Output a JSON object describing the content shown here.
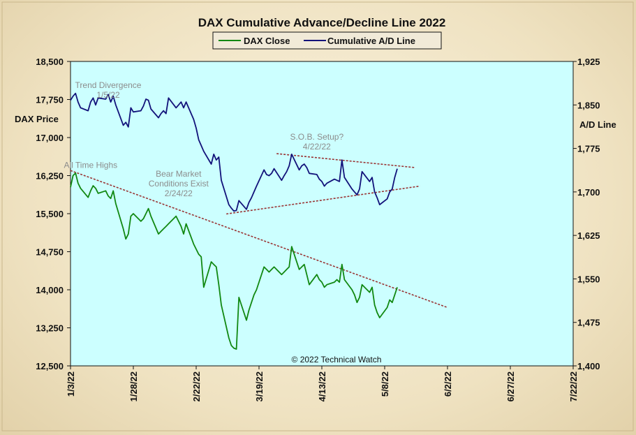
{
  "chart_data": {
    "type": "line",
    "title": "DAX Cumulative Advance/Decline Line 2022",
    "credit": "© 2022 Technical Watch",
    "legend": {
      "placement": "top-center",
      "entries": [
        {
          "name": "DAX Close",
          "color": "#118811"
        },
        {
          "name": "Cumulative A/D Line",
          "color": "#12127a"
        }
      ]
    },
    "left_axis": {
      "label": "DAX Price",
      "range": [
        12500,
        18500
      ],
      "ticks": [
        "12,500",
        "13,250",
        "14,000",
        "14,750",
        "15,500",
        "16,250",
        "17,000",
        "17,750",
        "18,500"
      ]
    },
    "right_axis": {
      "label": "A/D Line",
      "range": [
        1400,
        1925
      ],
      "ticks": [
        "1,400",
        "1,475",
        "1,550",
        "1,625",
        "1,700",
        "1,775",
        "1,850",
        "1,925"
      ]
    },
    "x_axis": {
      "ticks": [
        "1/3/22",
        "1/28/22",
        "2/22/22",
        "3/19/22",
        "4/13/22",
        "5/8/22",
        "6/2/22",
        "6/27/22",
        "7/22/22"
      ],
      "tick_days": [
        0,
        25,
        50,
        75,
        100,
        125,
        150,
        175,
        200
      ]
    },
    "grid": false,
    "plot_background": "#ccffff",
    "series": [
      {
        "name": "DAX Close",
        "axis": "left",
        "color": "#118811",
        "x": [
          0,
          1,
          2,
          3,
          4,
          7,
          8,
          9,
          10,
          11,
          14,
          15,
          16,
          17,
          18,
          21,
          22,
          23,
          24,
          25,
          28,
          29,
          30,
          31,
          32,
          35,
          36,
          37,
          38,
          39,
          42,
          43,
          44,
          45,
          46,
          49,
          50,
          51,
          52,
          53,
          56,
          57,
          58,
          59,
          60,
          63,
          64,
          65,
          66,
          67,
          70,
          71,
          72,
          73,
          74,
          77,
          78,
          79,
          80,
          81,
          84,
          85,
          86,
          87,
          88,
          91,
          92,
          93,
          94,
          95,
          98,
          99,
          100,
          101,
          102,
          105,
          106,
          107,
          108,
          109,
          112,
          113,
          114,
          115,
          116,
          119,
          120,
          121,
          122,
          123,
          126,
          127,
          128,
          129,
          130
        ],
        "y": [
          16020,
          16250,
          16300,
          16100,
          16000,
          15820,
          15950,
          16050,
          16000,
          15900,
          15950,
          15850,
          15800,
          15950,
          15700,
          15200,
          15000,
          15100,
          15450,
          15500,
          15350,
          15400,
          15500,
          15600,
          15450,
          15100,
          15150,
          15200,
          15250,
          15300,
          15450,
          15350,
          15250,
          15100,
          15300,
          14900,
          14800,
          14700,
          14650,
          14050,
          14550,
          14500,
          14450,
          14100,
          13700,
          13050,
          12900,
          12850,
          12830,
          13850,
          13400,
          13600,
          13750,
          13900,
          14000,
          14450,
          14400,
          14350,
          14400,
          14450,
          14300,
          14350,
          14400,
          14450,
          14850,
          14400,
          14450,
          14500,
          14300,
          14100,
          14300,
          14200,
          14150,
          14050,
          14100,
          14150,
          14200,
          14150,
          14500,
          14200,
          14000,
          13900,
          13750,
          13850,
          14100,
          13950,
          14050,
          13700,
          13550,
          13450,
          13650,
          13800,
          13750,
          13900,
          14050
        ]
      },
      {
        "name": "Cumulative A/D Line",
        "axis": "right",
        "color": "#12127a",
        "x": [
          0,
          1,
          2,
          3,
          4,
          7,
          8,
          9,
          10,
          11,
          14,
          15,
          16,
          17,
          18,
          21,
          22,
          23,
          24,
          25,
          28,
          29,
          30,
          31,
          32,
          35,
          36,
          37,
          38,
          39,
          42,
          43,
          44,
          45,
          46,
          49,
          50,
          51,
          52,
          53,
          56,
          57,
          58,
          59,
          60,
          63,
          64,
          65,
          66,
          67,
          70,
          71,
          72,
          73,
          74,
          77,
          78,
          79,
          80,
          81,
          84,
          85,
          86,
          87,
          88,
          91,
          92,
          93,
          94,
          95,
          98,
          99,
          100,
          101,
          102,
          105,
          106,
          107,
          108,
          109,
          112,
          113,
          114,
          115,
          116,
          119,
          120,
          121,
          122,
          123,
          126,
          127,
          128,
          129,
          130
        ],
        "y": [
          1858,
          1865,
          1870,
          1855,
          1845,
          1840,
          1855,
          1862,
          1850,
          1862,
          1860,
          1868,
          1855,
          1865,
          1850,
          1815,
          1820,
          1812,
          1845,
          1838,
          1840,
          1848,
          1860,
          1858,
          1843,
          1828,
          1835,
          1840,
          1835,
          1862,
          1845,
          1850,
          1855,
          1845,
          1855,
          1825,
          1810,
          1790,
          1780,
          1770,
          1748,
          1765,
          1755,
          1760,
          1720,
          1678,
          1672,
          1667,
          1668,
          1685,
          1670,
          1682,
          1690,
          1700,
          1710,
          1738,
          1730,
          1728,
          1732,
          1740,
          1720,
          1728,
          1735,
          1745,
          1765,
          1738,
          1745,
          1748,
          1742,
          1732,
          1730,
          1722,
          1718,
          1710,
          1715,
          1722,
          1720,
          1718,
          1755,
          1725,
          1705,
          1700,
          1695,
          1705,
          1735,
          1718,
          1725,
          1700,
          1690,
          1678,
          1688,
          1700,
          1705,
          1725,
          1740
        ]
      }
    ],
    "trendlines": [
      {
        "axis": "left",
        "from": [
          0,
          16350
        ],
        "to": [
          150,
          13650
        ],
        "color": "#993333",
        "style": "dashed"
      },
      {
        "axis": "right",
        "from": [
          62,
          1662
        ],
        "to": [
          139,
          1710
        ],
        "color": "#993333",
        "style": "dashed"
      },
      {
        "axis": "right",
        "from": [
          82,
          1766
        ],
        "to": [
          137,
          1742
        ],
        "color": "#993333",
        "style": "dashed"
      }
    ],
    "annotations": [
      {
        "lines": [
          "Trend  Divergence",
          "1/5/22"
        ],
        "axis": "left",
        "x": 15,
        "y": 17980
      },
      {
        "lines": [
          "All Time Highs"
        ],
        "axis": "left",
        "x": 8,
        "y": 16400
      },
      {
        "lines": [
          "Bear Market",
          "Conditions  Exist",
          "2/24/22"
        ],
        "axis": "left",
        "x": 43,
        "y": 16230
      },
      {
        "lines": [
          "S.O.B.  Setup?",
          "4/22/22"
        ],
        "axis": "left",
        "x": 98,
        "y": 16960
      }
    ]
  }
}
